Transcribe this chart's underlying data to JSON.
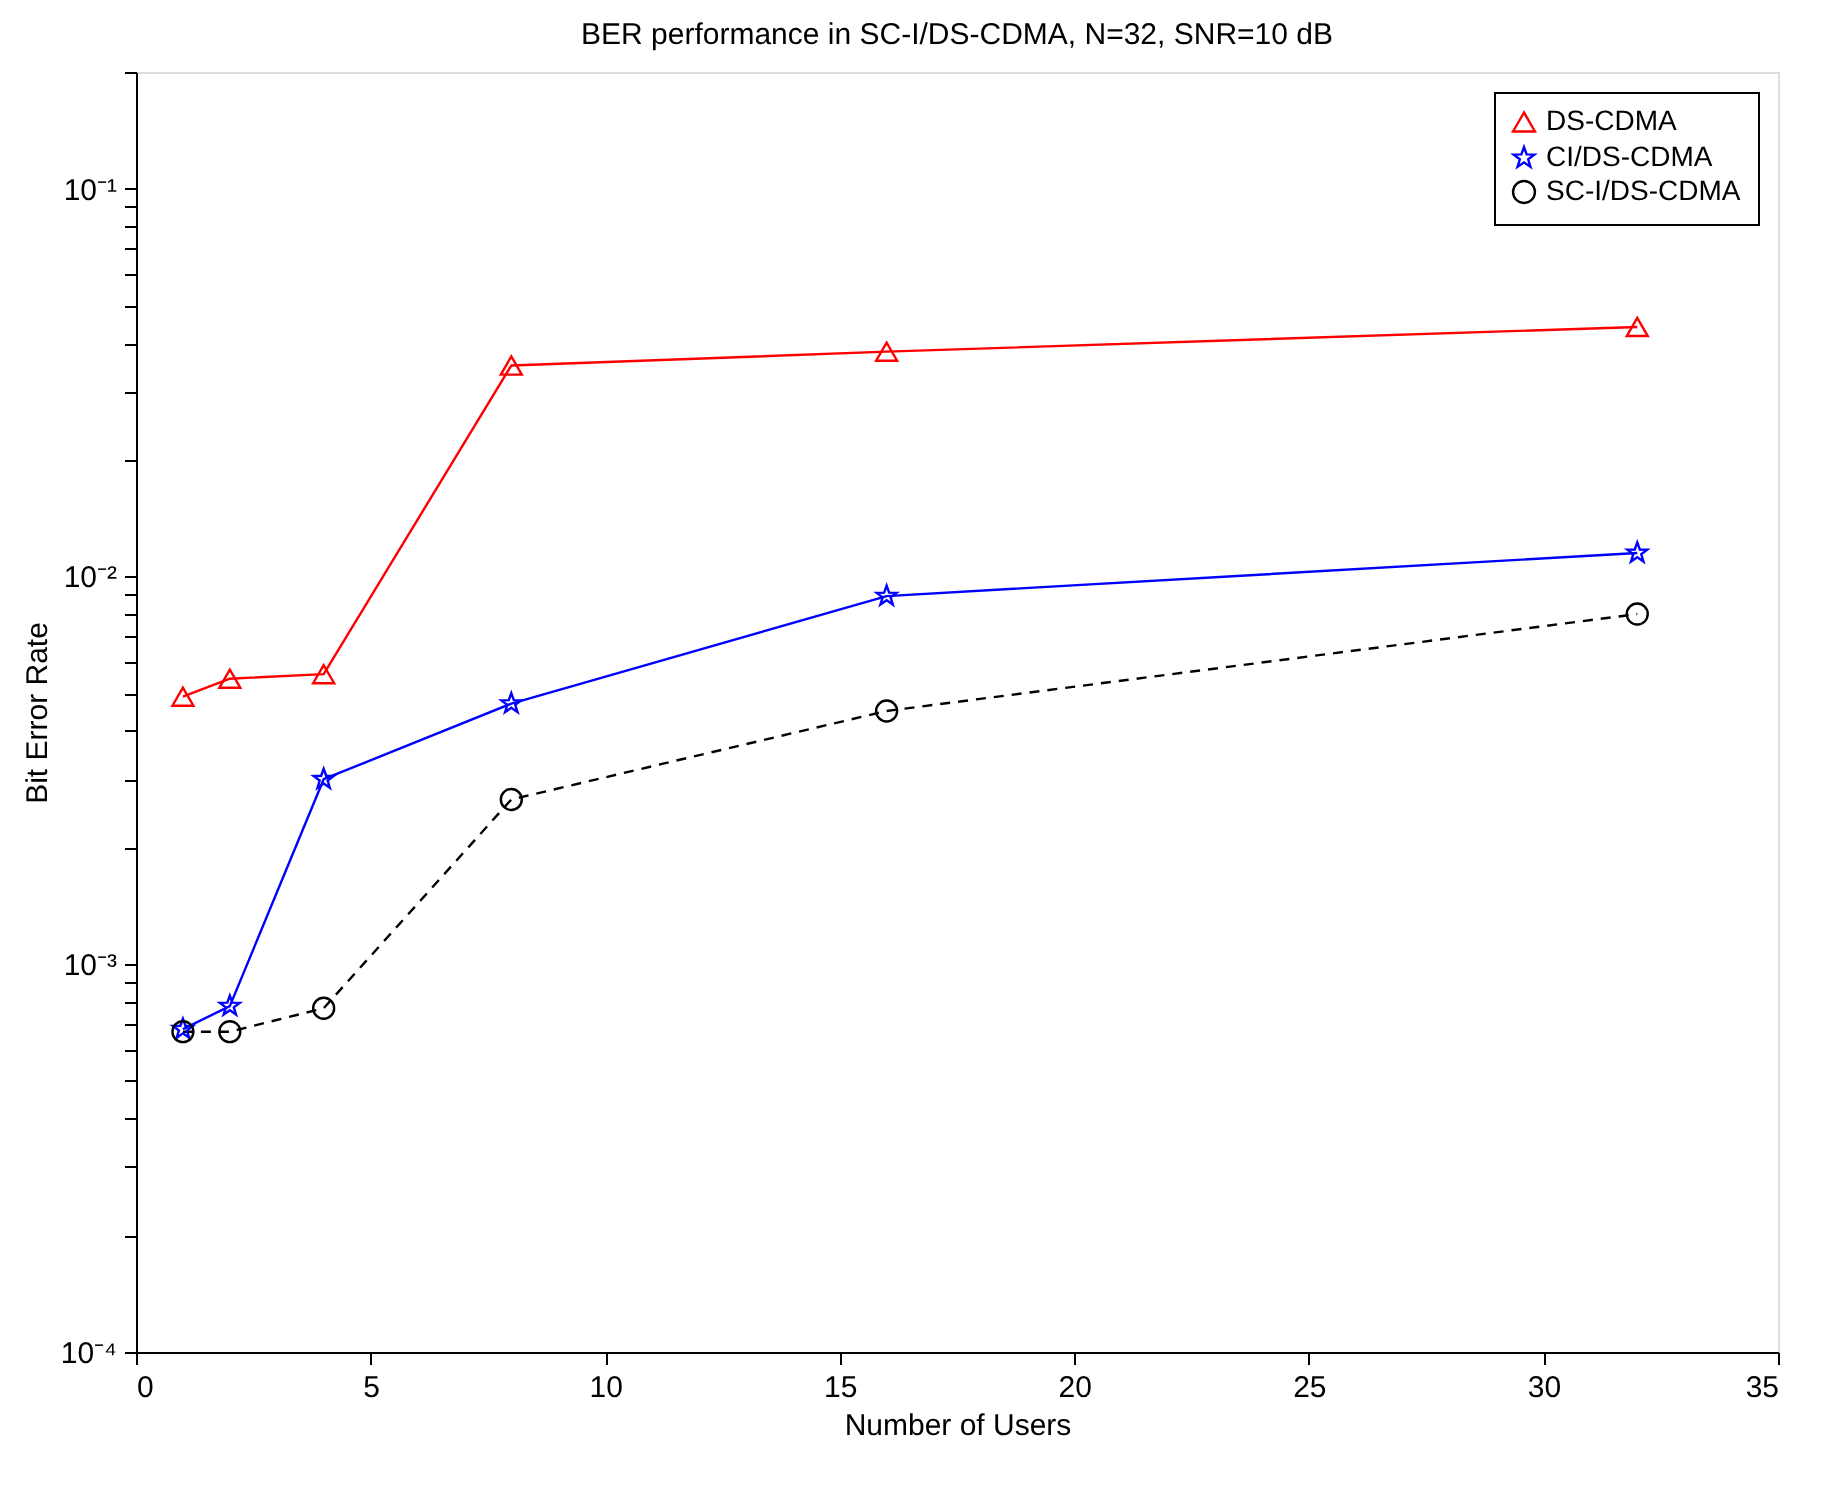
{
  "chart_data": {
    "type": "line",
    "title": "BER performance in SC-I/DS-CDMA, N=32, SNR=10 dB",
    "xlabel": "Number of Users",
    "ylabel": "Bit Error Rate",
    "x": [
      1,
      2,
      4,
      8,
      16,
      32
    ],
    "series": [
      {
        "name": "DS-CDMA",
        "color": "#ff0000",
        "marker": "triangle",
        "line_style": "solid",
        "values": [
          0.0049,
          0.00545,
          0.0056,
          0.035,
          0.038,
          0.044
        ]
      },
      {
        "name": "CI/DS-CDMA",
        "color": "#0000ff",
        "marker": "star",
        "line_style": "solid",
        "values": [
          0.00068,
          0.00078,
          0.003,
          0.0047,
          0.0089,
          0.0115
        ]
      },
      {
        "name": "SC-I/DS-CDMA",
        "color": "#000000",
        "marker": "circle",
        "line_style": "dashed",
        "values": [
          0.00067,
          0.00067,
          0.00077,
          0.00266,
          0.0045,
          0.008
        ]
      }
    ],
    "log": "y",
    "xlim": [
      0,
      35
    ],
    "xticks": [
      0,
      5,
      10,
      15,
      20,
      25,
      30,
      35
    ],
    "ylim": [
      0.0001,
      0.2
    ],
    "yticks": [
      {
        "value": 0.0001,
        "label": "10⁻⁴"
      },
      {
        "value": 0.0002,
        "label": null
      },
      {
        "value": 0.0003,
        "label": null
      },
      {
        "value": 0.0004,
        "label": null
      },
      {
        "value": 0.0005,
        "label": null
      },
      {
        "value": 0.0006,
        "label": null
      },
      {
        "value": 0.0007,
        "label": null
      },
      {
        "value": 0.0008,
        "label": null
      },
      {
        "value": 0.0009,
        "label": null
      },
      {
        "value": 0.001,
        "label": "10⁻³"
      },
      {
        "value": 0.002,
        "label": null
      },
      {
        "value": 0.003,
        "label": null
      },
      {
        "value": 0.004,
        "label": null
      },
      {
        "value": 0.005,
        "label": null
      },
      {
        "value": 0.006,
        "label": null
      },
      {
        "value": 0.007,
        "label": null
      },
      {
        "value": 0.008,
        "label": null
      },
      {
        "value": 0.009,
        "label": null
      },
      {
        "value": 0.01,
        "label": "10⁻²"
      },
      {
        "value": 0.02,
        "label": null
      },
      {
        "value": 0.03,
        "label": null
      },
      {
        "value": 0.04,
        "label": null
      },
      {
        "value": 0.05,
        "label": null
      },
      {
        "value": 0.06,
        "label": null
      },
      {
        "value": 0.07,
        "label": null
      },
      {
        "value": 0.08,
        "label": null
      },
      {
        "value": 0.09,
        "label": null
      },
      {
        "value": 0.1,
        "label": "10⁻¹"
      },
      {
        "value": 0.2,
        "label": null
      }
    ],
    "grid": false,
    "legend": "top right"
  }
}
